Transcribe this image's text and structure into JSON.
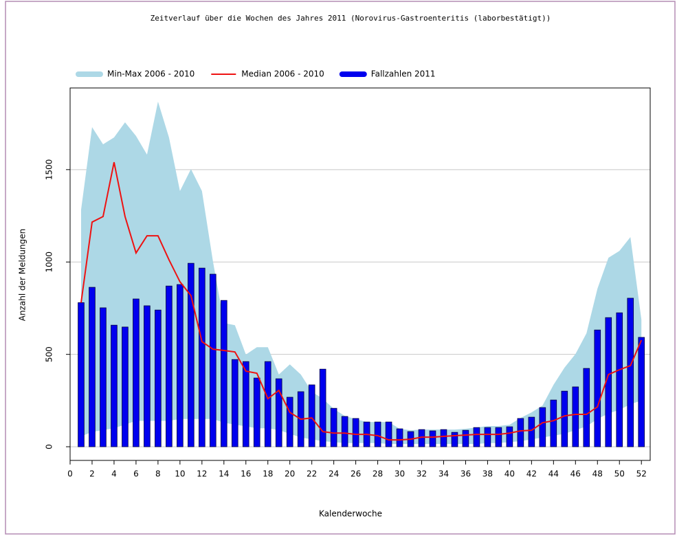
{
  "chart_data": {
    "type": "bar_band_line",
    "title": "Zeitverlauf über die Wochen des Jahres 2011 (Norovirus-Gastroenteritis (laborbestätigt))",
    "xlabel": "Kalenderwoche",
    "ylabel": "Anzahl der Meldungen",
    "x": [
      1,
      2,
      3,
      4,
      5,
      6,
      7,
      8,
      9,
      10,
      11,
      12,
      13,
      14,
      15,
      16,
      17,
      18,
      19,
      20,
      21,
      22,
      23,
      24,
      25,
      26,
      27,
      28,
      29,
      30,
      31,
      32,
      33,
      34,
      35,
      36,
      37,
      38,
      39,
      40,
      41,
      42,
      43,
      44,
      45,
      46,
      47,
      48,
      49,
      50,
      51,
      52
    ],
    "series": [
      {
        "name": "Min-Max 2006 - 2010",
        "kind": "band",
        "color": "#add8e6",
        "low": [
          56,
          80,
          90,
          100,
          120,
          140,
          140,
          140,
          140,
          150,
          150,
          150,
          150,
          130,
          120,
          110,
          100,
          100,
          90,
          70,
          50,
          40,
          30,
          25,
          20,
          20,
          20,
          20,
          15,
          15,
          15,
          15,
          15,
          15,
          15,
          15,
          15,
          20,
          20,
          25,
          30,
          40,
          50,
          60,
          70,
          90,
          110,
          150,
          180,
          200,
          230,
          250
        ],
        "high": [
          1283,
          1730,
          1637,
          1674,
          1756,
          1682,
          1581,
          1868,
          1674,
          1384,
          1503,
          1384,
          1004,
          670,
          658,
          499,
          539,
          539,
          391,
          446,
          391,
          298,
          260,
          205,
          167,
          149,
          134,
          134,
          134,
          97,
          89,
          93,
          93,
          93,
          93,
          97,
          104,
          112,
          112,
          119,
          156,
          186,
          223,
          335,
          428,
          502,
          614,
          856,
          1023,
          1060,
          1135,
          688
        ]
      },
      {
        "name": "Median 2006 - 2010",
        "kind": "line",
        "color": "#ee1111",
        "values": [
          780,
          1216,
          1246,
          1540,
          1246,
          1049,
          1142,
          1142,
          1012,
          893,
          818,
          569,
          528,
          521,
          513,
          409,
          398,
          260,
          305,
          186,
          149,
          156,
          82,
          74,
          74,
          67,
          67,
          60,
          37,
          37,
          41,
          52,
          52,
          56,
          60,
          63,
          67,
          67,
          67,
          74,
          86,
          89,
          130,
          141,
          167,
          175,
          175,
          216,
          391,
          417,
          439,
          577
        ]
      },
      {
        "name": "Fallzahlen 2011",
        "kind": "bar",
        "color": "#0000ee",
        "values": [
          780,
          863,
          752,
          658,
          648,
          800,
          763,
          740,
          870,
          878,
          993,
          967,
          934,
          792,
          472,
          461,
          372,
          461,
          368,
          268,
          298,
          335,
          420,
          208,
          164,
          153,
          134,
          134,
          134,
          97,
          82,
          93,
          86,
          93,
          78,
          89,
          104,
          104,
          104,
          108,
          153,
          160,
          212,
          253,
          301,
          324,
          424,
          632,
          699,
          725,
          804,
          592
        ]
      }
    ],
    "xlim": [
      0,
      52.8
    ],
    "ylim": [
      -74,
      1942
    ],
    "xticks": [
      0,
      2,
      4,
      6,
      8,
      10,
      12,
      14,
      16,
      18,
      20,
      22,
      24,
      26,
      28,
      30,
      32,
      34,
      36,
      38,
      40,
      42,
      44,
      46,
      48,
      50,
      52
    ],
    "yticks": [
      0,
      500,
      1000,
      1500
    ],
    "grid": true,
    "legend": "top"
  }
}
